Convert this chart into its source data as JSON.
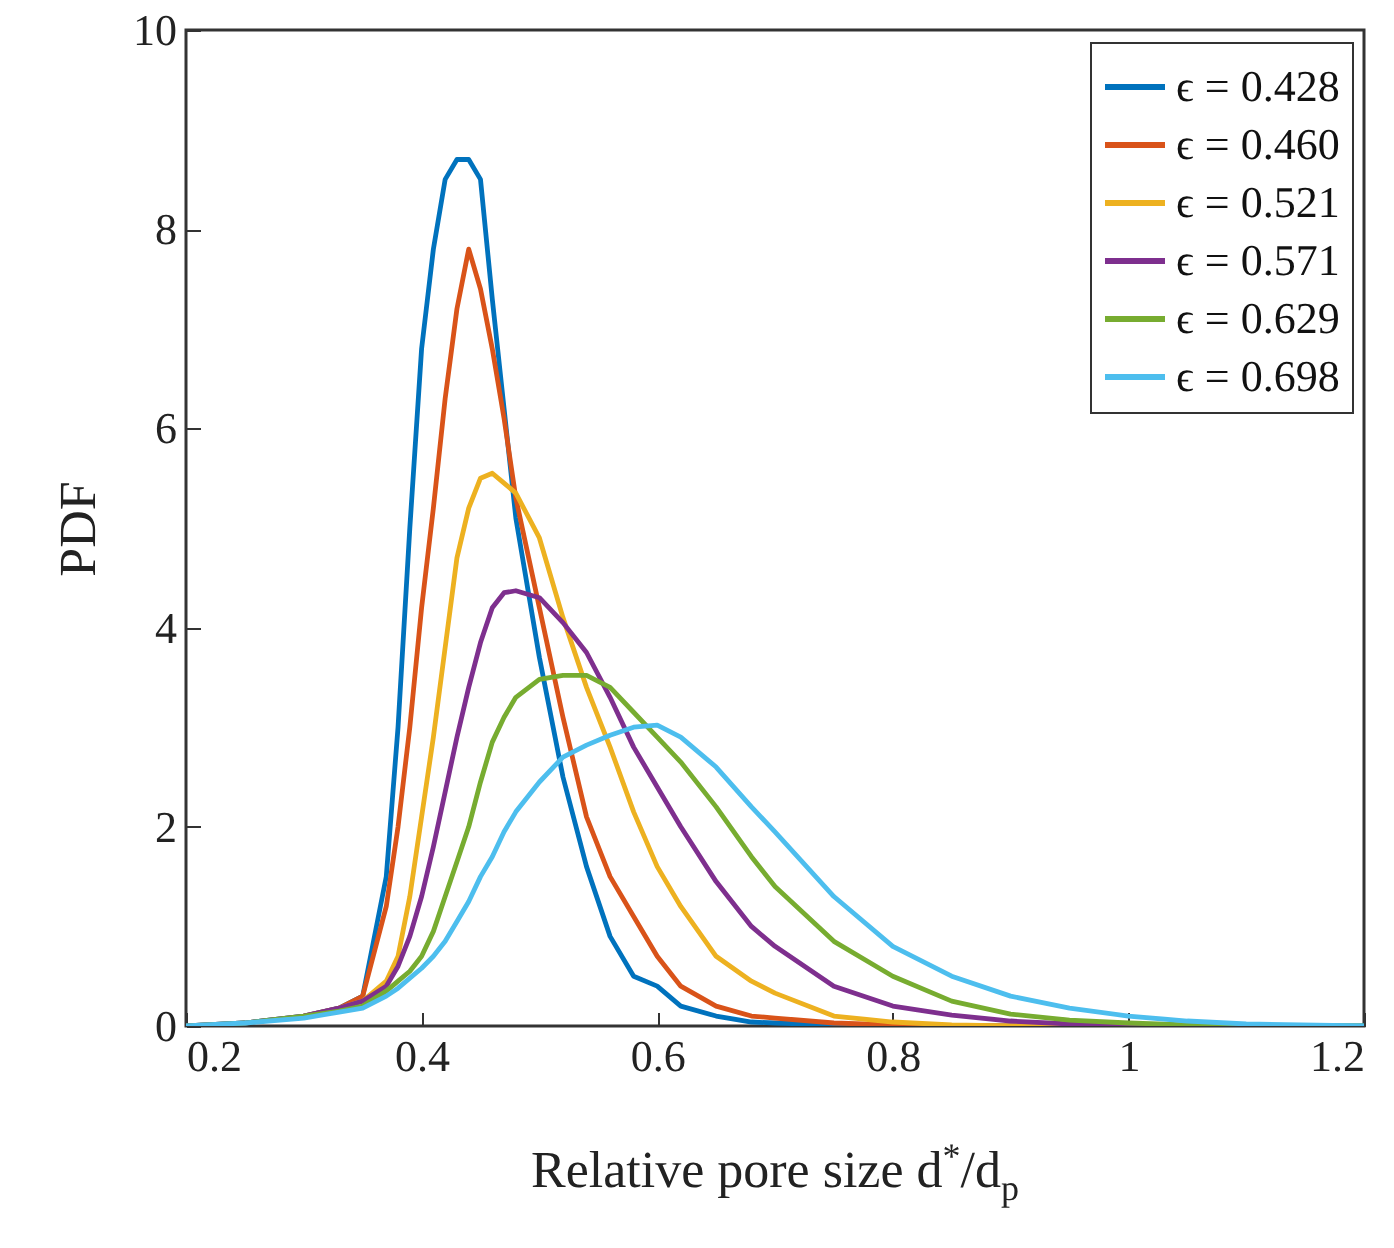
{
  "chart_data": {
    "type": "line",
    "xlabel": "Relative pore size d$^{*}$/d$_{p}$",
    "ylabel": "PDF",
    "x": [
      0.2,
      0.25,
      0.3,
      0.33,
      0.35,
      0.37,
      0.38,
      0.39,
      0.4,
      0.41,
      0.42,
      0.43,
      0.44,
      0.45,
      0.46,
      0.47,
      0.48,
      0.5,
      0.52,
      0.54,
      0.56,
      0.58,
      0.6,
      0.62,
      0.65,
      0.68,
      0.7,
      0.75,
      0.8,
      0.85,
      0.9,
      0.95,
      1.0,
      1.05,
      1.1,
      1.2
    ],
    "series": [
      {
        "name": "ϵ = 0.428",
        "color": "#0072bd",
        "values": [
          0,
          0.03,
          0.1,
          0.18,
          0.3,
          1.5,
          3,
          5,
          6.8,
          7.8,
          8.5,
          8.7,
          8.7,
          8.5,
          7.3,
          6.2,
          5.1,
          3.7,
          2.5,
          1.6,
          0.9,
          0.5,
          0.4,
          0.2,
          0.1,
          0.04,
          0.03,
          0.01,
          0,
          0,
          0,
          0,
          0,
          0,
          0,
          0
        ]
      },
      {
        "name": "ϵ = 0.460",
        "color": "#d95319",
        "values": [
          null,
          null,
          0.1,
          0.18,
          0.3,
          1.2,
          2.0,
          3.0,
          4.2,
          5.2,
          6.3,
          7.2,
          7.8,
          7.4,
          6.8,
          6.1,
          5.3,
          4.2,
          3.1,
          2.1,
          1.5,
          1.1,
          0.7,
          0.4,
          0.2,
          0.1,
          0.08,
          0.03,
          0.01,
          0,
          0,
          0,
          0,
          null,
          null,
          null
        ]
      },
      {
        "name": "ϵ = 0.521",
        "color": "#edb120",
        "values": [
          null,
          null,
          null,
          0.18,
          0.25,
          0.45,
          0.7,
          1.3,
          2.1,
          2.9,
          3.8,
          4.7,
          5.2,
          5.5,
          5.55,
          5.45,
          5.35,
          4.9,
          4.1,
          3.4,
          2.8,
          2.15,
          1.6,
          1.2,
          0.7,
          0.45,
          0.33,
          0.1,
          0.04,
          0.01,
          0,
          0,
          0,
          null,
          null,
          null
        ]
      },
      {
        "name": "ϵ = 0.571",
        "color": "#7e2f8e",
        "values": [
          0,
          0.03,
          0.1,
          0.18,
          0.25,
          0.4,
          0.6,
          0.9,
          1.3,
          1.8,
          2.35,
          2.9,
          3.4,
          3.85,
          4.2,
          4.35,
          4.37,
          4.3,
          4.05,
          3.75,
          3.3,
          2.8,
          2.4,
          2.0,
          1.45,
          1.0,
          0.8,
          0.4,
          0.2,
          0.11,
          0.05,
          0.02,
          0.01,
          0,
          null,
          null
        ]
      },
      {
        "name": "ϵ = 0.629",
        "color": "#77ac30",
        "values": [
          0,
          0.03,
          0.1,
          0.15,
          0.2,
          0.35,
          0.45,
          0.55,
          0.7,
          0.95,
          1.3,
          1.65,
          2.0,
          2.45,
          2.85,
          3.1,
          3.3,
          3.48,
          3.52,
          3.52,
          3.4,
          3.15,
          2.9,
          2.65,
          2.2,
          1.7,
          1.4,
          0.85,
          0.5,
          0.25,
          0.12,
          0.06,
          0.03,
          0.01,
          0,
          0
        ]
      },
      {
        "name": "ϵ = 0.698",
        "color": "#4dbeee",
        "values": [
          0,
          0.03,
          0.08,
          0.14,
          0.18,
          0.3,
          0.38,
          0.48,
          0.58,
          0.7,
          0.85,
          1.05,
          1.25,
          1.5,
          1.7,
          1.95,
          2.15,
          2.45,
          2.7,
          2.82,
          2.92,
          3.0,
          3.02,
          2.9,
          2.6,
          2.2,
          1.95,
          1.3,
          0.8,
          0.5,
          0.3,
          0.18,
          0.1,
          0.05,
          0.02,
          0
        ]
      }
    ],
    "xlim": [
      0.2,
      1.2
    ],
    "xticks": [
      0.2,
      0.4,
      0.6,
      0.8,
      1,
      1.2
    ],
    "ylim": [
      0,
      10
    ],
    "yticks": [
      0,
      2,
      4,
      6,
      8,
      10
    ],
    "legend": "top right",
    "grid": false
  }
}
